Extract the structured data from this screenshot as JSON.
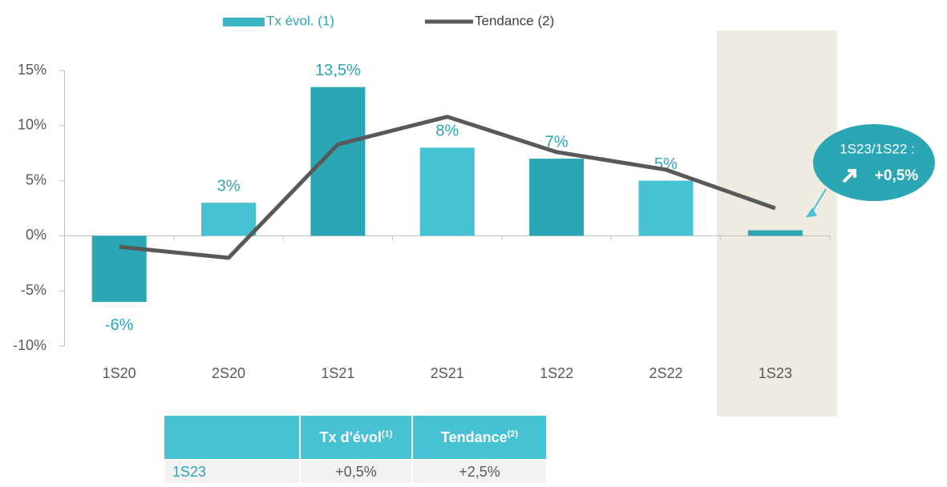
{
  "chart_data": {
    "type": "bar",
    "categories": [
      "1S20",
      "2S20",
      "1S21",
      "2S21",
      "1S22",
      "2S22",
      "1S23"
    ],
    "series": [
      {
        "name": "Tx évol. (1)",
        "type": "bar",
        "color": "#3bb5c6",
        "colors": [
          "#2aa6b5",
          "#47c1d4",
          "#2aa6b5",
          "#47c1d4",
          "#2aa6b5",
          "#47c1d4",
          "#2aa6b5"
        ],
        "values": [
          -6,
          3,
          13.5,
          8,
          7,
          5,
          0.5
        ],
        "value_labels": [
          "-6%",
          "3%",
          "13,5%",
          "8%",
          "7%",
          "5%",
          null
        ]
      },
      {
        "name": "Tendance (2)",
        "type": "line",
        "color": "#595959",
        "values": [
          -1,
          -2,
          8.3,
          10.8,
          7.6,
          6,
          2.5
        ]
      }
    ],
    "ylim": [
      -10,
      15
    ],
    "yticks": [
      {
        "value": -10,
        "label": "-10%"
      },
      {
        "value": -5,
        "label": "-5%"
      },
      {
        "value": 0,
        "label": "0%"
      },
      {
        "value": 5,
        "label": "5%"
      },
      {
        "value": 10,
        "label": "10%"
      },
      {
        "value": 15,
        "label": "15%"
      }
    ],
    "highlight": "1S23",
    "callout": {
      "title": "1S23/1S22 :",
      "value": 0.5,
      "value_label": "+0,5%"
    }
  },
  "table": {
    "header": [
      {
        "text": "Tx d'évol",
        "sup": "(1)"
      },
      {
        "text": "Tendance",
        "sup": "(2)"
      }
    ],
    "rows": [
      [
        "1S23",
        "+0,5%",
        "+2,5%"
      ]
    ]
  }
}
